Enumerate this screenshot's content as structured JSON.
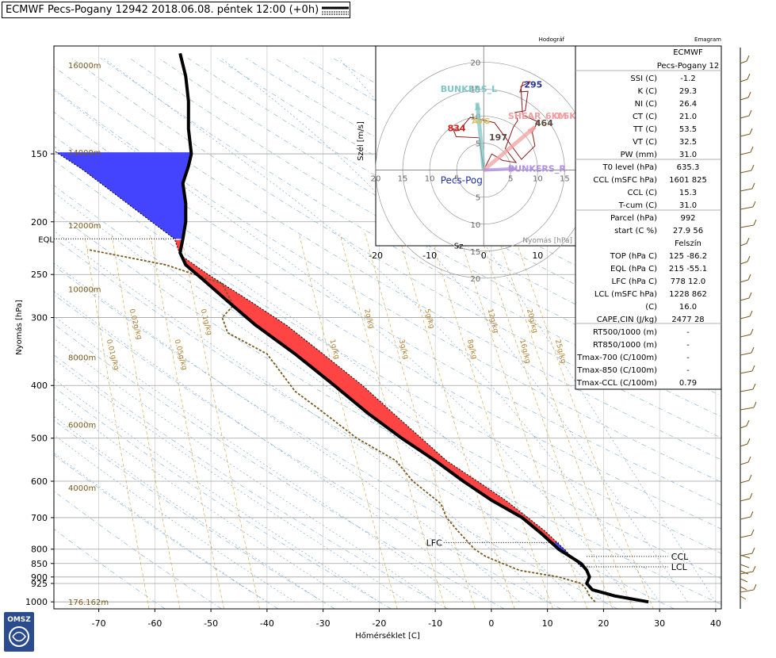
{
  "header": {
    "title": "ECMWF Pecs-Pogany 12942 2018.06.08. péntek 12:00 (+0h)",
    "hodograph_label": "Hodográf",
    "emagram_label": "Emagram"
  },
  "logo": {
    "text": "OMSZ"
  },
  "colors": {
    "cape": "#ff4444",
    "cin": "#4444ff",
    "temperature": "#000000",
    "dewpoint": "#7a5a1e",
    "mixing_ratio": "#d4a040",
    "dry_adiabat": "#8fb7d9",
    "moist_adiabat": "#6fa0cc"
  },
  "chart_data": [
    {
      "type": "line",
      "name": "emagram",
      "xlabel": "Hőmérséklet [C]",
      "ylabel": "Nyomás [hPa]",
      "xlim": [
        -78,
        41
      ],
      "ylim": [
        1030,
        95
      ],
      "y_scale": "log",
      "x_ticks": [
        -70,
        -60,
        -50,
        -40,
        -30,
        -20,
        -10,
        0,
        10,
        20,
        30,
        40
      ],
      "y_ticks": [
        1000,
        925,
        900,
        850,
        800,
        700,
        600,
        500,
        400,
        300,
        250,
        200,
        150
      ],
      "height_labels": [
        {
          "label": "16000m",
          "p": 103
        },
        {
          "label": "14000m",
          "p": 149
        },
        {
          "label": "12000m",
          "p": 203
        },
        {
          "label": "10000m",
          "p": 266
        },
        {
          "label": "8000m",
          "p": 355
        },
        {
          "label": "6000m",
          "p": 472
        },
        {
          "label": "4000m",
          "p": 616
        },
        {
          "label": "176.162m",
          "p": 1000
        }
      ],
      "mixing_ratio_labels": [
        "0.01g/kg",
        "0.02g/kg",
        "0.05g/kg",
        "0.1g/kg",
        "1g/kg",
        "2g/kg",
        "3g/kg",
        "5g/kg",
        "8g/kg",
        "12g/kg",
        "16g/kg",
        "20g/kg",
        "25g/kg"
      ],
      "level_labels": [
        {
          "label": "EQL",
          "p": 215
        },
        {
          "label": "LFC",
          "p": 778
        },
        {
          "label": "CCL",
          "p": 825
        },
        {
          "label": "LCL",
          "p": 862
        }
      ],
      "series": [
        {
          "name": "temperature",
          "points": [
            [
              28,
              1000
            ],
            [
              22,
              975
            ],
            [
              18,
              950
            ],
            [
              17,
              925
            ],
            [
              17.5,
              900
            ],
            [
              17,
              875
            ],
            [
              16,
              850
            ],
            [
              12,
              800
            ],
            [
              9,
              750
            ],
            [
              5.5,
              700
            ],
            [
              0,
              650
            ],
            [
              -5,
              600
            ],
            [
              -10,
              550
            ],
            [
              -16,
              500
            ],
            [
              -22,
              450
            ],
            [
              -28,
              400
            ],
            [
              -35,
              350
            ],
            [
              -42,
              310
            ],
            [
              -47,
              280
            ],
            [
              -51.5,
              255
            ],
            [
              -54.5,
              240
            ],
            [
              -55.5,
              228
            ],
            [
              -55,
              215
            ],
            [
              -54.5,
              200
            ],
            [
              -54.5,
              185
            ],
            [
              -55,
              170
            ],
            [
              -54,
              158
            ],
            [
              -53.5,
              150
            ],
            [
              -54,
              135
            ],
            [
              -54,
              120
            ],
            [
              -54.5,
              108
            ],
            [
              -55.5,
              98
            ]
          ]
        },
        {
          "name": "dewpoint",
          "points": [
            [
              18.5,
              1000
            ],
            [
              17.5,
              975
            ],
            [
              17,
              950
            ],
            [
              16,
              925
            ],
            [
              12,
              900
            ],
            [
              5,
              875
            ],
            [
              2,
              850
            ],
            [
              -1,
              825
            ],
            [
              -3,
              800
            ],
            [
              -6,
              740
            ],
            [
              -8,
              700
            ],
            [
              -9,
              660
            ],
            [
              -14,
              600
            ],
            [
              -17,
              550
            ],
            [
              -24,
              500
            ],
            [
              -31,
              440
            ],
            [
              -35,
              410
            ],
            [
              -40,
              350
            ],
            [
              -47,
              320
            ],
            [
              -48,
              300
            ],
            [
              -46,
              285
            ],
            [
              -48,
              260
            ],
            [
              -58,
              240
            ],
            [
              -72,
              225
            ]
          ]
        },
        {
          "name": "parcel",
          "points": [
            [
              16,
              862
            ],
            [
              13,
              800
            ],
            [
              9.5,
              740
            ],
            [
              6.5,
              700
            ],
            [
              2.5,
              650
            ],
            [
              -2.5,
              600
            ],
            [
              -8,
              550
            ],
            [
              -12.5,
              500
            ],
            [
              -17.5,
              450
            ],
            [
              -23,
              400
            ],
            [
              -30,
              350
            ],
            [
              -36.5,
              310
            ],
            [
              -43,
              280
            ],
            [
              -50.5,
              250
            ],
            [
              -55.5,
              230
            ],
            [
              -56.5,
              215
            ],
            [
              -62,
              195
            ],
            [
              -68,
              175
            ],
            [
              -73,
              160
            ],
            [
              -78,
              148
            ]
          ]
        }
      ]
    },
    {
      "type": "line",
      "name": "hodograph",
      "xlabel": "Nyomás [hPa]",
      "ylabel": "Szél [m/s]",
      "x_ticks": [
        -20,
        -10,
        0,
        10
      ],
      "ring_labels": [
        5,
        10,
        15,
        20
      ],
      "annotations": [
        "BUNKERS_L",
        "BUNKERS_R",
        "AVG",
        "SHEAR_6KM",
        "0.5KM",
        "Pecs-Pog",
        "834",
        "197",
        "295",
        "464",
        "Sz"
      ],
      "series": [
        {
          "name": "wind",
          "points": [
            [
              0,
              0
            ],
            [
              1.5,
              3
            ],
            [
              3.5,
              1.8
            ],
            [
              6,
              1.4
            ],
            [
              4,
              4
            ],
            [
              5.5,
              8
            ],
            [
              6.3,
              9.2
            ],
            [
              5.8,
              10.7
            ],
            [
              7.7,
              11
            ],
            [
              8.2,
              14.6
            ],
            [
              6.7,
              14.5
            ],
            [
              7.3,
              16.3
            ],
            [
              8.7,
              16.4
            ],
            [
              6.9,
              15.5
            ],
            [
              7.2,
              10.2
            ],
            [
              10,
              9
            ],
            [
              9,
              7
            ],
            [
              9.5,
              4.5
            ],
            [
              7,
              2
            ],
            [
              2,
              8.8
            ],
            [
              -2.5,
              9.8
            ],
            [
              -4.6,
              7.3
            ],
            [
              -5.7,
              7.7
            ],
            [
              -5.1,
              6.2
            ],
            [
              -0.8,
              6
            ],
            [
              0,
              0
            ]
          ]
        }
      ]
    }
  ],
  "table": {
    "header_title": "ECMWF",
    "header_station": "Pecs-Pogany 12",
    "rows": [
      {
        "label": "SSI (C)",
        "value": "-1.2"
      },
      {
        "label": "K (C)",
        "value": "29.3"
      },
      {
        "label": "NI (C)",
        "value": "26.4"
      },
      {
        "label": "CT (C)",
        "value": "21.0"
      },
      {
        "label": "TT (C)",
        "value": "53.5"
      },
      {
        "label": "VT (C)",
        "value": "32.5"
      },
      {
        "label": "PW (mm)",
        "value": "31.0"
      },
      {
        "label": "T0 level (hPa)",
        "value": "635.3"
      },
      {
        "label": "CCL (mSFC  hPa)",
        "value": "1601  825"
      },
      {
        "label": "CCL (C)",
        "value": "15.3"
      },
      {
        "label": "T-cum (C)",
        "value": "31.0"
      },
      {
        "label": "Parcel  (hPa)",
        "value": "992"
      },
      {
        "label": "start (C  %)",
        "value": "27.9  56"
      },
      {
        "label": "",
        "value": "Felszín"
      },
      {
        "label": "TOP (hPa  C)",
        "value": "125  -86.2"
      },
      {
        "label": "EQL (hPa  C)",
        "value": "215  -55.1"
      },
      {
        "label": "LFC (hPa  C)",
        "value": "778  12.0"
      },
      {
        "label": "LCL (mSFC  hPa)",
        "value": "1228  862"
      },
      {
        "label": "(C)",
        "value": "16.0"
      },
      {
        "label": "CAPE,CIN (J/kg)",
        "value": "2477  28"
      },
      {
        "label": "RT500/1000 (m)",
        "value": "-"
      },
      {
        "label": "RT850/1000 (m)",
        "value": "-"
      },
      {
        "label": "Tmax-700 (C/100m)",
        "value": "-"
      },
      {
        "label": "Tmax-850 (C/100m)",
        "value": "-"
      },
      {
        "label": "Tmax-CCL (C/100m)",
        "value": "0.79"
      }
    ]
  }
}
